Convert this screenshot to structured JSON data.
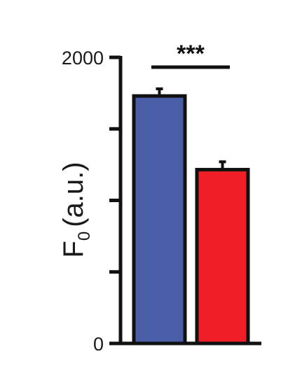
{
  "chart_data": {
    "type": "bar",
    "title": "",
    "ylabel": {
      "main": "F",
      "subscript": "0",
      "unit": "(a.u.)"
    },
    "xlabel": "",
    "ylim": [
      0,
      2000
    ],
    "yticks": [
      0,
      500,
      1000,
      1500,
      2000
    ],
    "ytick_labels": [
      {
        "value": 0,
        "label": "0"
      },
      {
        "value": 2000,
        "label": "2000"
      }
    ],
    "categories": [
      "",
      ""
    ],
    "values": [
      1730,
      1215
    ],
    "errors": [
      50,
      55
    ],
    "colors": [
      "#4a5ea8",
      "#ee1f25"
    ],
    "significance": {
      "label": "***",
      "between": [
        0,
        1
      ]
    },
    "grid": false,
    "legend": "none"
  }
}
